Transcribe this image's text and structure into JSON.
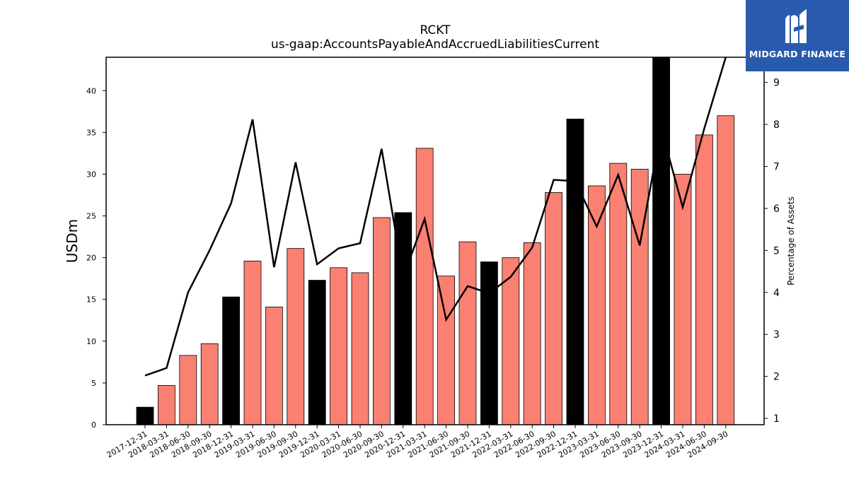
{
  "chart_data": {
    "type": "bar",
    "title": "RCKT",
    "subtitle": "us-gaap:AccountsPayableAndAccruedLiabilitiesCurrent",
    "ylabel": "USDm",
    "y2label": "Percentage of Assets",
    "ylim": [
      0,
      44
    ],
    "y2lim": [
      0.85,
      9.6
    ],
    "yticks": [
      0,
      5,
      10,
      15,
      20,
      25,
      30,
      35,
      40
    ],
    "y2ticks": [
      1,
      2,
      3,
      4,
      5,
      6,
      7,
      8,
      9
    ],
    "categories": [
      "2017-12-31",
      "2018-03-31",
      "2018-06-30",
      "2018-09-30",
      "2018-12-31",
      "2019-03-31",
      "2019-06-30",
      "2019-09-30",
      "2019-12-31",
      "2020-03-31",
      "2020-06-30",
      "2020-09-30",
      "2020-12-31",
      "2021-03-31",
      "2021-06-30",
      "2021-09-30",
      "2021-12-31",
      "2022-03-31",
      "2022-06-30",
      "2022-09-30",
      "2022-12-31",
      "2023-03-31",
      "2023-06-30",
      "2023-09-30",
      "2023-12-31",
      "2024-03-31",
      "2024-06-30",
      "2024-09-30"
    ],
    "series": [
      {
        "type": "bar",
        "values": [
          2.1,
          4.7,
          8.3,
          9.7,
          15.3,
          19.6,
          14.1,
          21.1,
          17.3,
          18.8,
          18.2,
          24.8,
          25.4,
          33.1,
          17.8,
          21.9,
          19.5,
          20.0,
          21.8,
          27.8,
          36.6,
          28.6,
          31.3,
          30.6,
          44.0,
          30.0,
          34.7,
          37.0
        ]
      },
      {
        "type": "line",
        "axis": "right",
        "values": [
          2.02,
          2.2,
          4.0,
          5.0,
          6.12,
          8.12,
          4.6,
          7.1,
          4.67,
          5.05,
          5.17,
          7.42,
          4.37,
          5.75,
          3.35,
          4.15,
          3.98,
          4.37,
          5.07,
          6.68,
          6.65,
          5.57,
          6.8,
          5.12,
          7.9,
          6.03,
          7.9,
          9.6
        ]
      }
    ],
    "colors": {
      "year_end_bar": "#000000",
      "quarter_bar": "#fa8072",
      "line": "#000000"
    }
  },
  "logo": {
    "text": "MIDGARD FINANCE",
    "icon": "midgard-logo-icon"
  }
}
